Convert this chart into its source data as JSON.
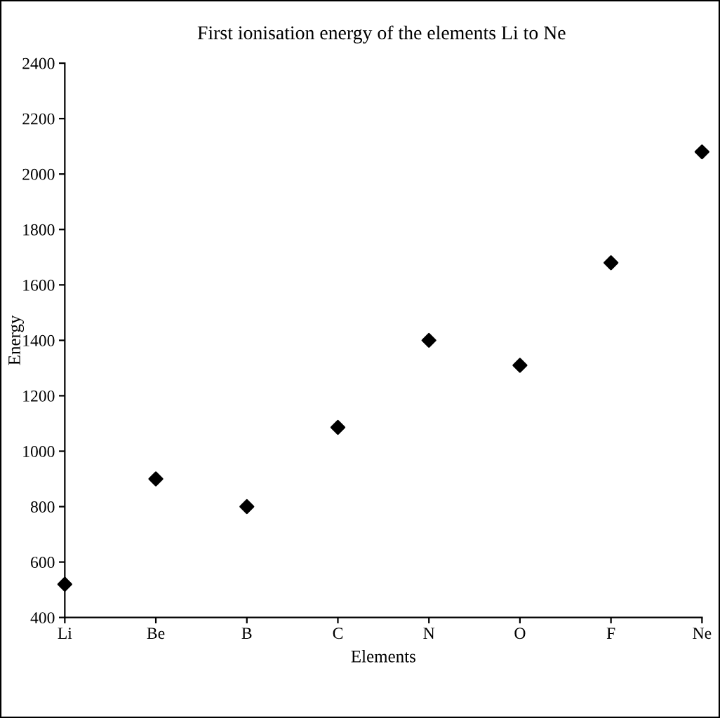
{
  "chart_data": {
    "type": "scatter",
    "title": "First ionisation energy of the elements Li to Ne",
    "xlabel": "Elements",
    "ylabel": "Energy",
    "categories": [
      "Li",
      "Be",
      "B",
      "C",
      "N",
      "O",
      "F",
      "Ne"
    ],
    "values": [
      520,
      900,
      800,
      1086,
      1400,
      1310,
      1680,
      2080
    ],
    "color": "#000000",
    "marker": "diamond",
    "ylim": [
      400,
      2400
    ],
    "yticks": [
      400,
      600,
      800,
      1000,
      1200,
      1400,
      1600,
      1800,
      2000,
      2200,
      2400
    ],
    "grid": false,
    "legend": false
  }
}
